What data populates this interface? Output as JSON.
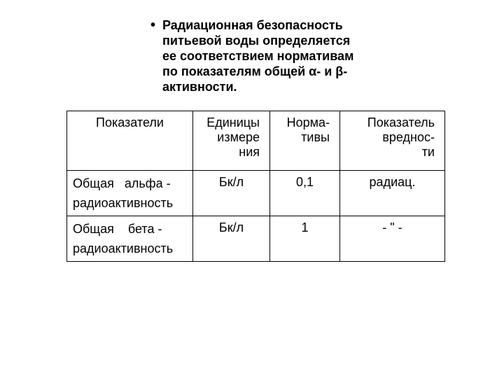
{
  "bullet": {
    "text": "Радиационная безопасность питьевой воды определяется ее соответствием нормативам по показателям общей α- и β-активности."
  },
  "table": {
    "headers": {
      "col0": "Показатели",
      "col1": "Единицы измерения",
      "col1_line1": "Единицы",
      "col1_line2": "измере",
      "col1_line3": "ния",
      "col2": "Норма-",
      "col2_line2": "тивы",
      "col3": "Показатель",
      "col3_line2": "вреднос-",
      "col3_line3": "ти"
    },
    "rows": [
      {
        "param_line1": "Общая   альфа -",
        "param_line2": "радиоактивность",
        "units": "Бк/л",
        "norm": "0,1",
        "hazard": "радиац."
      },
      {
        "param_line1": "Общая    бета -",
        "param_line2": "радиоактивность",
        "units": "Бк/л",
        "norm": "1",
        "hazard": "- \" -"
      }
    ]
  },
  "styles": {
    "background_color": "#ffffff",
    "text_color": "#000000",
    "border_color": "#000000",
    "bullet_fontsize": 18,
    "table_fontsize": 18
  }
}
